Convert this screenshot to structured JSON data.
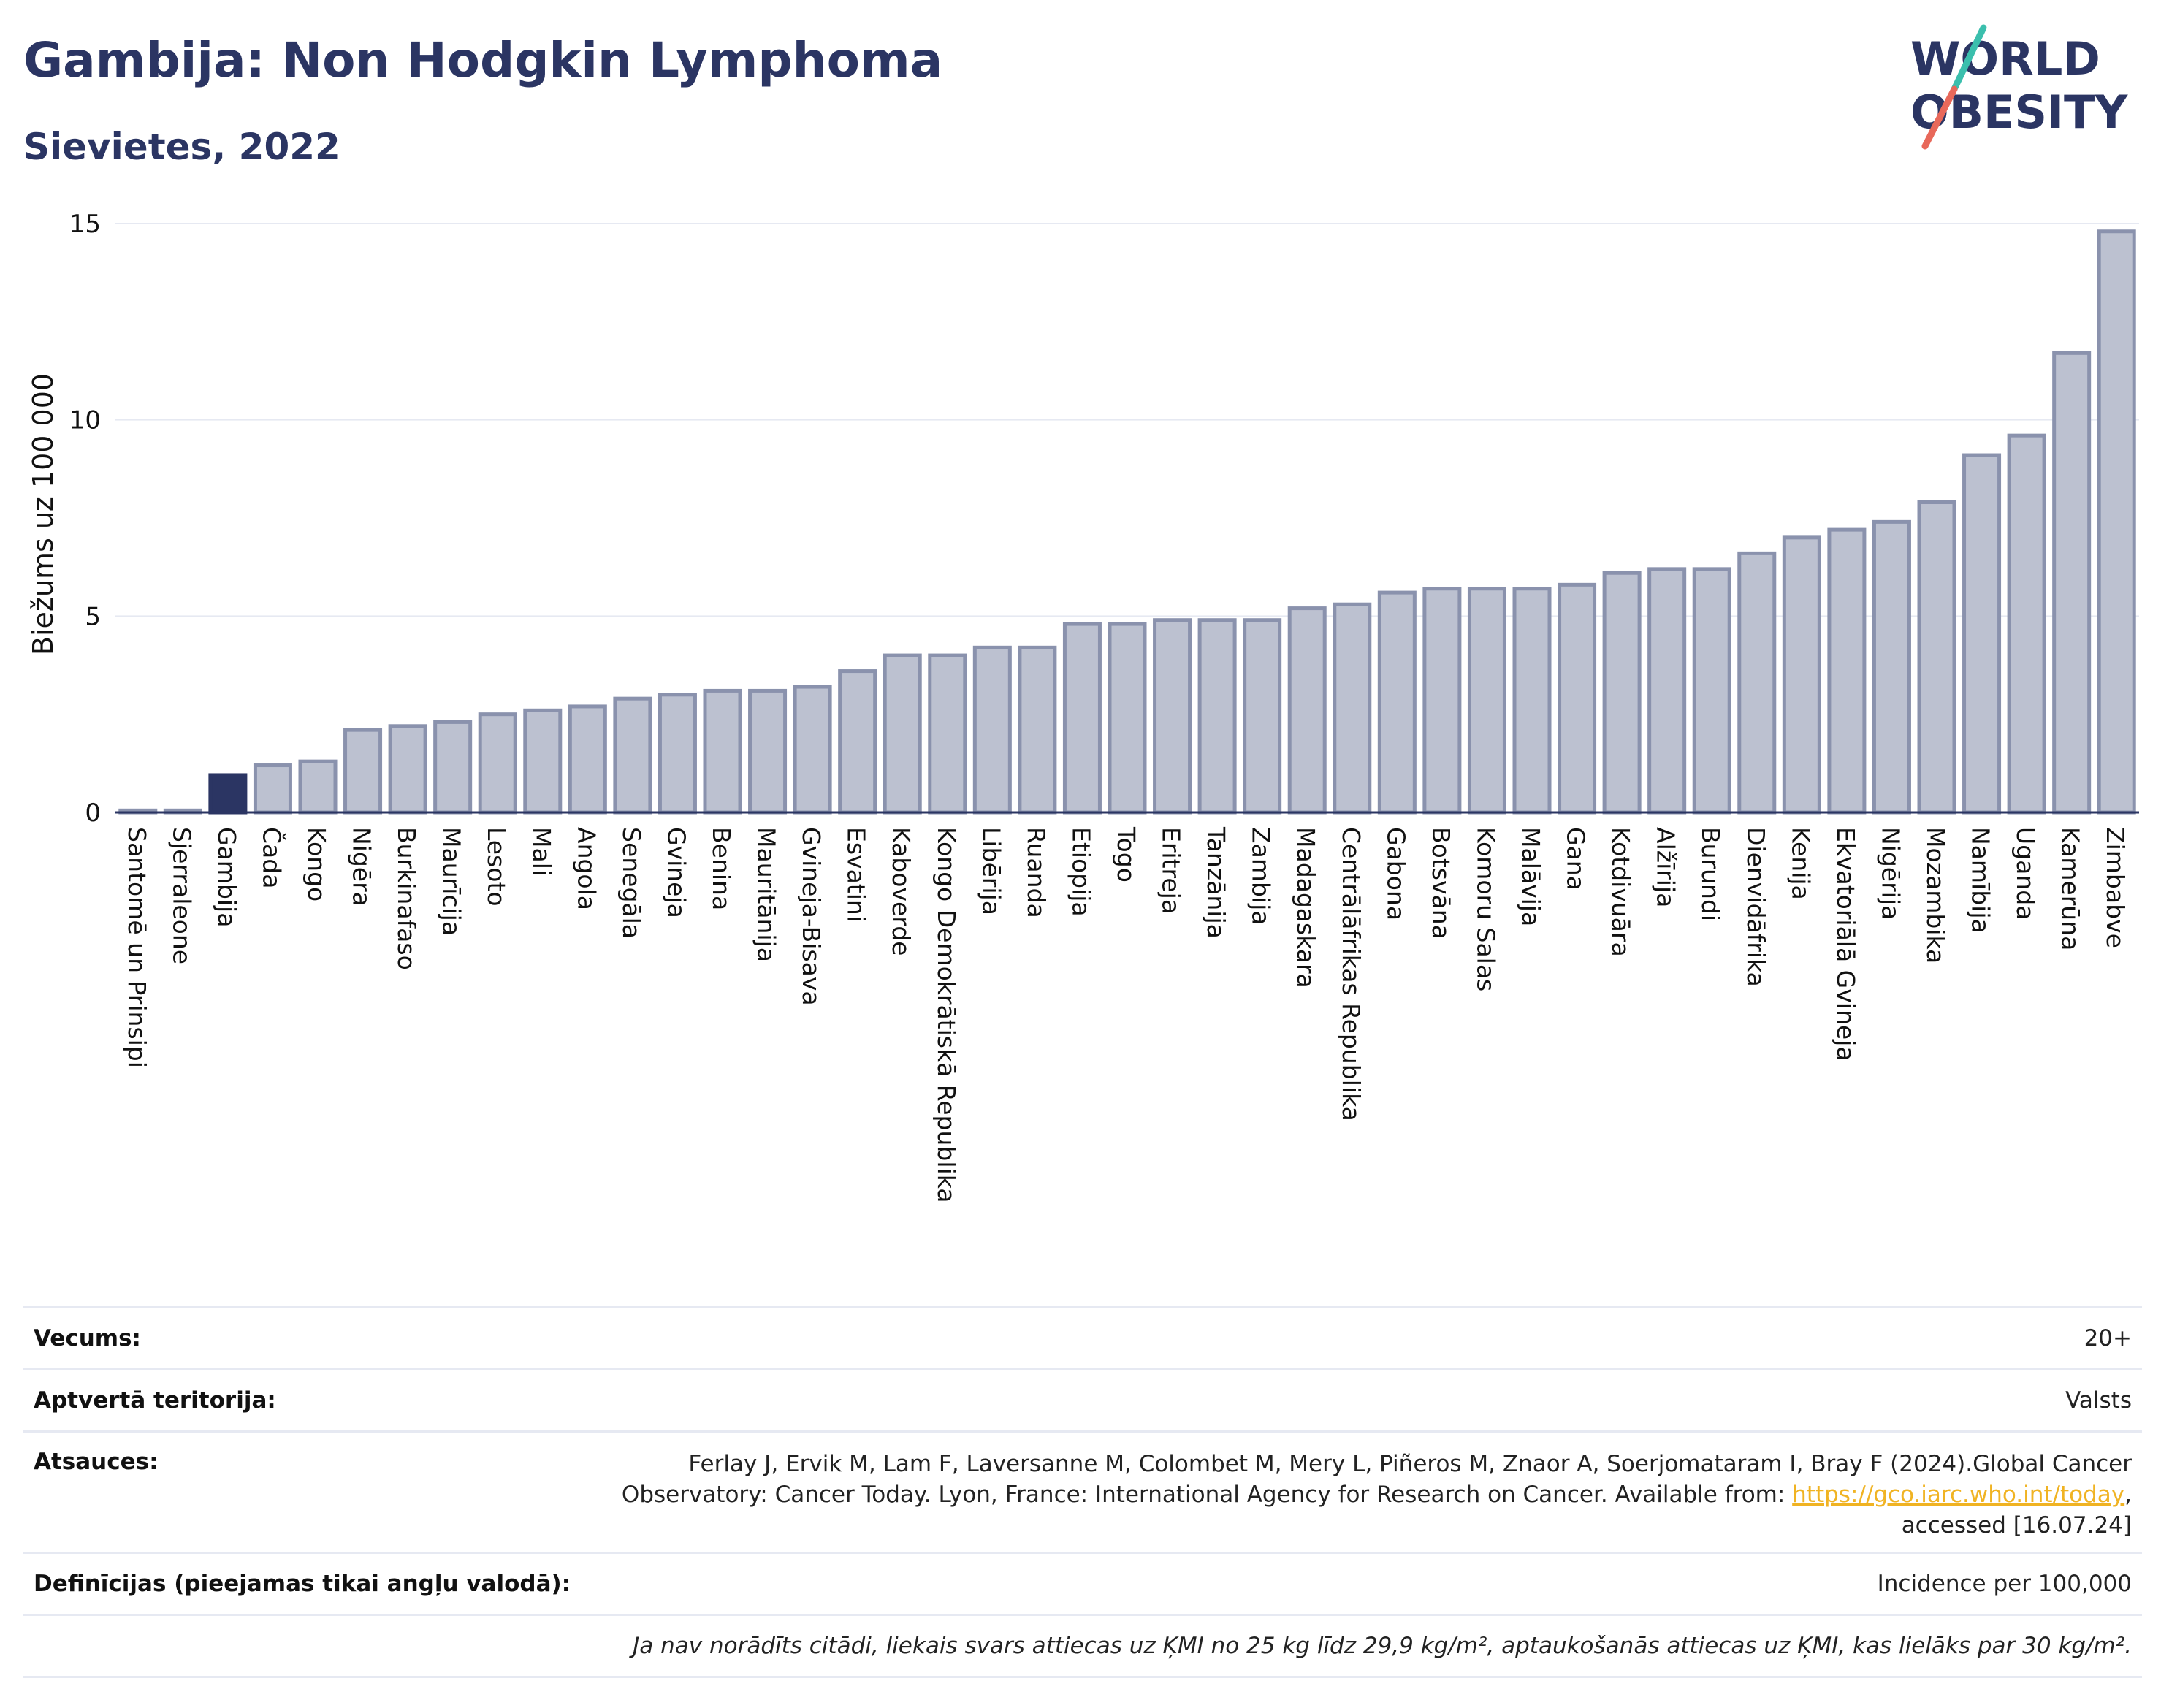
{
  "header": {
    "title": "Gambija: Non Hodgkin Lymphoma",
    "subtitle": "Sievietes, 2022",
    "logo_line1": "WORLD",
    "logo_line2": "OBESITY"
  },
  "colors": {
    "title": "#2b3563",
    "bar_default": "#bcc1d0",
    "bar_default_stroke": "#8a92ad",
    "bar_highlight": "#2b3563",
    "grid": "#e6e9f2",
    "link": "#f0b323",
    "logo_teal": "#3bbfad",
    "logo_coral": "#e8685a"
  },
  "chart_data": {
    "type": "bar",
    "ylabel": "Biežums uz 100 000",
    "xlabel": "",
    "ylim": [
      0,
      15
    ],
    "yticks": [
      "0",
      "5",
      "10",
      "15"
    ],
    "highlight": "Gambija",
    "grid": true,
    "categories": [
      "Santomē un Prinsipi",
      "Sjerraleone",
      "Gambija",
      "Čada",
      "Kongo",
      "Nigēra",
      "Burkinafaso",
      "Maurīcija",
      "Lesoto",
      "Mali",
      "Angola",
      "Senegāla",
      "Gvineja",
      "Benina",
      "Mauritānija",
      "Gvineja-Bisava",
      "Esvatini",
      "Kaboverde",
      "Kongo Demokrātiskā Republika",
      "Libērija",
      "Ruanda",
      "Etiopija",
      "Togo",
      "Eritreja",
      "Tanzānija",
      "Zambija",
      "Madagaskara",
      "Centrālāfrikas Republika",
      "Gabona",
      "Botsvāna",
      "Komoru Salas",
      "Malāvija",
      "Gana",
      "Kotdivuāra",
      "Alžīrija",
      "Burundi",
      "Dienvidāfrika",
      "Kenija",
      "Ekvatoriālā Gvineja",
      "Nigērija",
      "Mozambika",
      "Namībija",
      "Uganda",
      "Kamerūna",
      "Zimbabve"
    ],
    "values": [
      0.05,
      0.05,
      0.95,
      1.2,
      1.3,
      2.1,
      2.2,
      2.3,
      2.5,
      2.6,
      2.7,
      2.9,
      3.0,
      3.1,
      3.1,
      3.2,
      3.6,
      4.0,
      4.0,
      4.2,
      4.2,
      4.8,
      4.8,
      4.9,
      4.9,
      4.9,
      5.2,
      5.3,
      5.6,
      5.7,
      5.7,
      5.7,
      5.8,
      6.1,
      6.2,
      6.2,
      6.6,
      7.0,
      7.2,
      7.4,
      7.9,
      9.1,
      9.6,
      11.7,
      14.8
    ]
  },
  "info": {
    "age_label": "Vecums:",
    "age_value": "20+",
    "territory_label": "Aptvertā teritorija:",
    "territory_value": "Valsts",
    "refs_label": "Atsauces:",
    "refs_line1": "Ferlay J, Ervik M, Lam F, Laversanne M, Colombet M, Mery L, Piñeros M, Znaor A, Soerjomataram I, Bray F (2024).Global Cancer",
    "refs_line2_pre": "Observatory: Cancer Today. Lyon, France: International Agency for Research on Cancer. Available from: ",
    "refs_link": "https://gco.iarc.who.int/today",
    "refs_line2_post": ",",
    "refs_line3": "accessed [16.07.24]",
    "definitions_label": "Definīcijas (pieejamas tikai angļu valodā):",
    "definitions_value": "Incidence per 100,000",
    "note": "Ja nav norādīts citādi, liekais svars attiecas uz ĶMI no 25 kg līdz 29,9 kg/m², aptaukošanās attiecas uz ĶMI, kas lielāks par 30 kg/m²."
  }
}
